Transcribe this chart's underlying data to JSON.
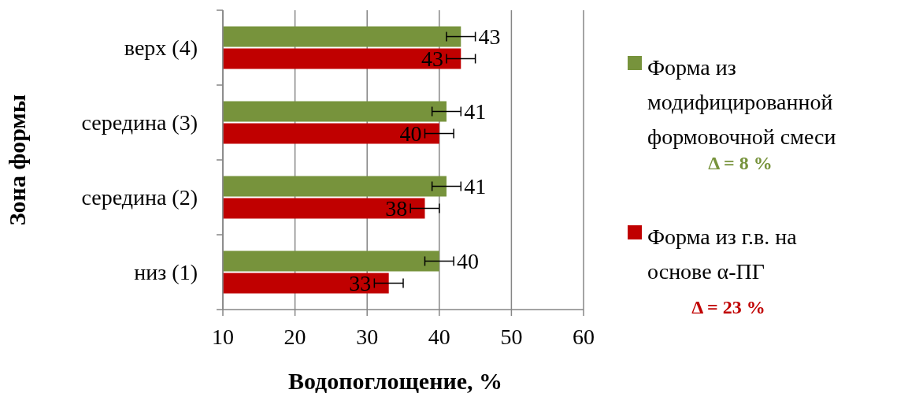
{
  "chart_data": {
    "type": "bar",
    "orientation": "horizontal",
    "xlabel": "Водопоглощение, %",
    "ylabel": "Зона формы",
    "categories": [
      "верх (4)",
      "середина (3)",
      "середина (2)",
      "низ (1)"
    ],
    "series": [
      {
        "name": "Форма из модифицированной формовочной смеси",
        "color": "#77933c",
        "values": [
          43,
          41,
          41,
          40
        ],
        "errors": [
          2,
          2,
          2,
          2
        ]
      },
      {
        "name": "Форма из г.в. на основе α-ПГ",
        "color": "#c00000",
        "values": [
          43,
          40,
          38,
          33
        ],
        "errors": [
          2,
          2,
          2,
          2
        ]
      }
    ],
    "xlim": [
      10,
      60
    ],
    "xticks": [
      10,
      20,
      30,
      40,
      50,
      60
    ],
    "grid": "x",
    "legend": "right",
    "data_labels": true,
    "annotations": [
      "Δ = 8 %",
      "Δ = 23 %"
    ]
  }
}
